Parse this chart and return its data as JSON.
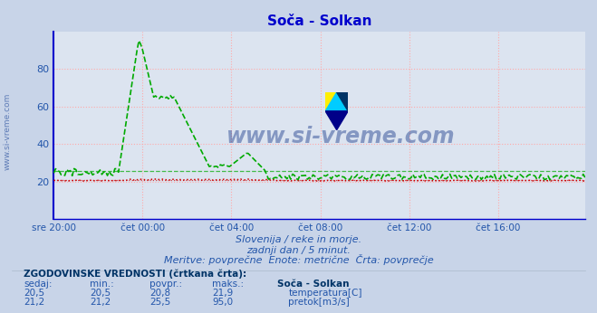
{
  "title": "Soča - Solkan",
  "title_color": "#0000cc",
  "bg_color": "#c8d4e8",
  "plot_bg_color": "#dce4f0",
  "grid_color": "#ffaaaa",
  "border_color": "#0000cc",
  "xlabel_times": [
    "sre 20:00",
    "čet 00:00",
    "čet 04:00",
    "čet 08:00",
    "čet 12:00",
    "čet 16:00"
  ],
  "yticks": [
    20,
    40,
    60,
    80
  ],
  "ymin": 0,
  "ymax": 100,
  "n_points": 288,
  "temp_color": "#cc0000",
  "flow_color": "#00aa00",
  "watermark_text": "www.si-vreme.com",
  "watermark_color": "#1a3a8a",
  "side_text": "www.si-vreme.com",
  "side_color": "#4466aa",
  "subtitle1": "Slovenija / reke in morje.",
  "subtitle2": "zadnji dan / 5 minut.",
  "subtitle3": "Meritve: povprečne  Enote: metrične  Črta: povprečje",
  "subtitle_color": "#2255aa",
  "table_header": "ZGODOVINSKE VREDNOSTI (črtkana črta):",
  "table_cols": [
    "sedaj:",
    "min.:",
    "povpr.:",
    "maks.:",
    "Soča - Solkan"
  ],
  "table_row1": [
    "20,5",
    "20,5",
    "20,8",
    "21,9",
    "temperatura[C]"
  ],
  "table_row2": [
    "21,2",
    "21,2",
    "25,5",
    "95,0",
    "pretok[m3/s]"
  ],
  "table_color": "#2255aa",
  "table_bold_col": "#003366",
  "logo_colors": [
    "#ffee00",
    "#00ccff",
    "#000088"
  ],
  "xtick_positions": [
    0,
    48,
    96,
    144,
    192,
    240
  ]
}
